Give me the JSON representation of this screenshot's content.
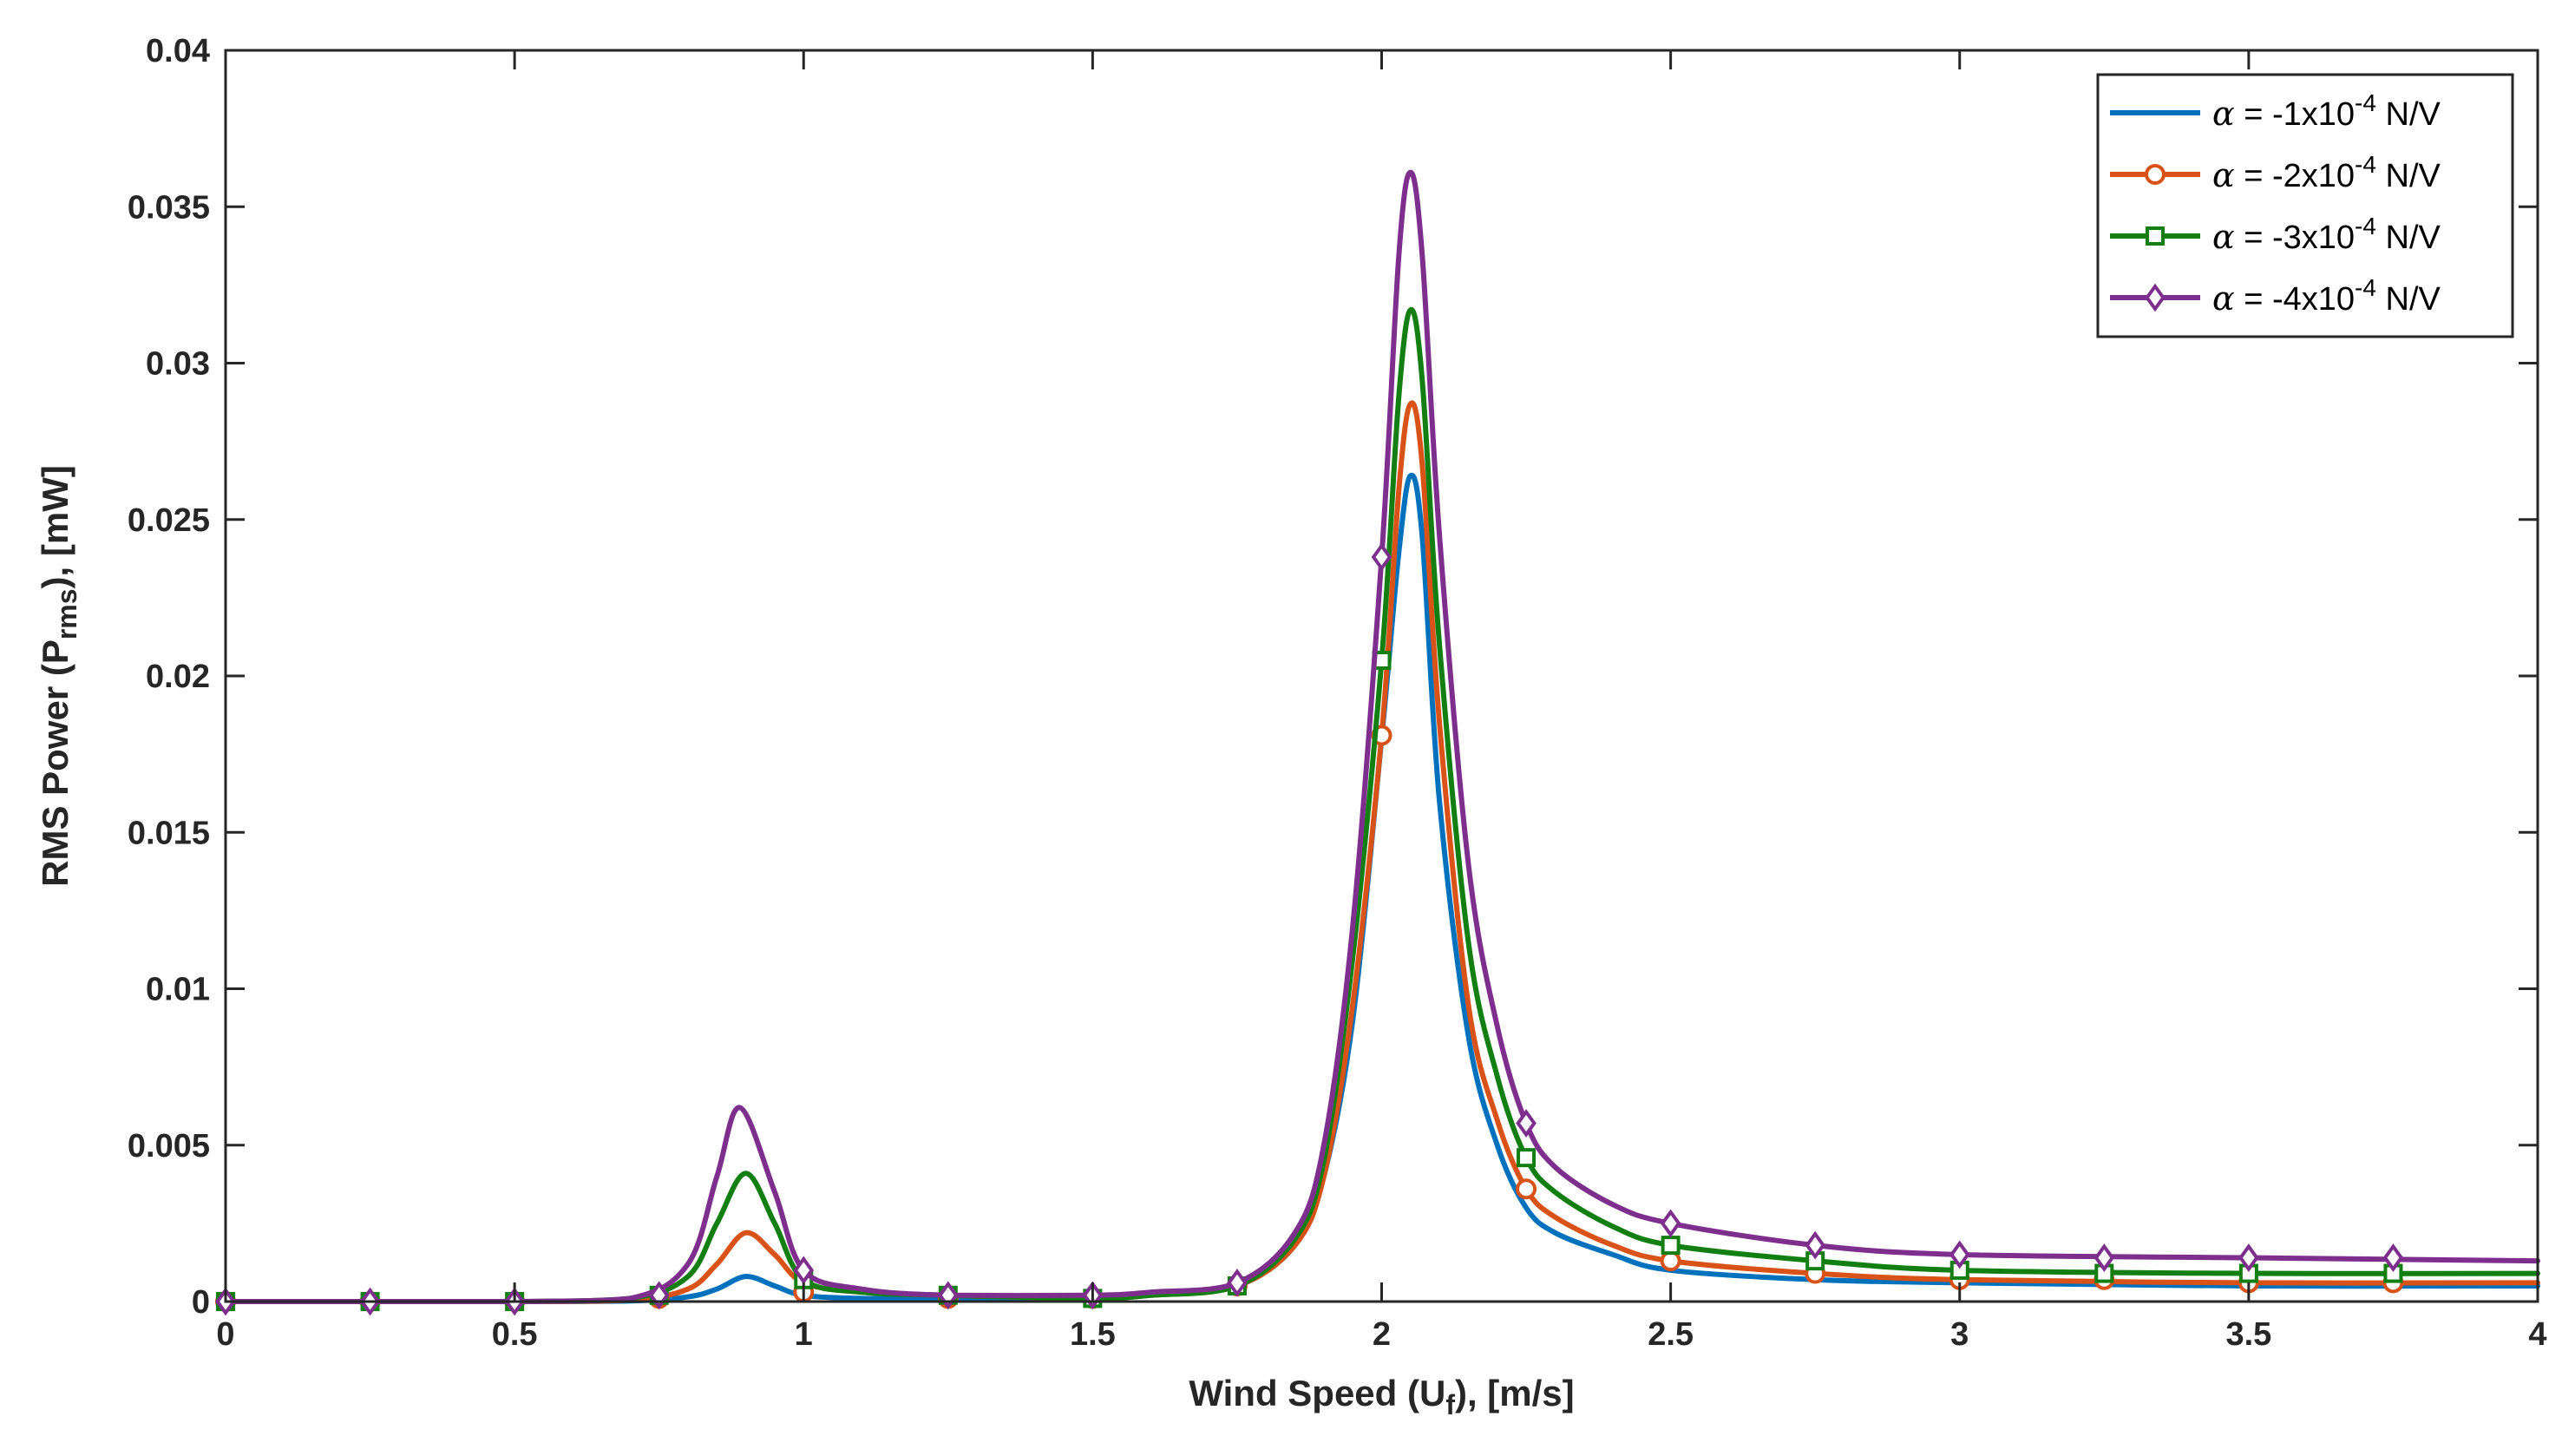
{
  "chart_data": {
    "type": "line",
    "title": "",
    "xlabel": {
      "prefix": "Wind Speed (U",
      "sub": "f",
      "suffix": "), [m/s]"
    },
    "ylabel": {
      "prefix": "RMS Power (P",
      "sub": "rms",
      "suffix": "), [mW]"
    },
    "xlim": [
      0,
      4
    ],
    "ylim": [
      0,
      0.04
    ],
    "xticks": [
      "0",
      "0.5",
      "1",
      "1.5",
      "2",
      "2.5",
      "3",
      "3.5",
      "4"
    ],
    "yticks": [
      "0",
      "0.005",
      "0.01",
      "0.015",
      "0.02",
      "0.025",
      "0.03",
      "0.035",
      "0.04"
    ],
    "grid": false,
    "legend_position": "top-right",
    "series": [
      {
        "name": "α = -1x10-4 N/V",
        "label_parts": {
          "symbol": "α",
          "pre": " = -1x10",
          "sup": "-4",
          "post": " N/V"
        },
        "color": "#0072BD",
        "marker": "none",
        "x": [
          0,
          0.25,
          0.5,
          0.7,
          0.8,
          0.85,
          0.9,
          0.95,
          1.0,
          1.1,
          1.25,
          1.5,
          1.6,
          1.75,
          1.85,
          1.9,
          1.95,
          2.0,
          2.03,
          2.05,
          2.07,
          2.1,
          2.15,
          2.2,
          2.25,
          2.3,
          2.4,
          2.5,
          2.75,
          3.0,
          3.5,
          4.0
        ],
        "y": [
          0,
          0,
          0,
          2e-05,
          0.00015,
          0.0004,
          0.0008,
          0.0005,
          0.0002,
          0.0001,
          0.0001,
          0.0001,
          0.0002,
          0.0005,
          0.0018,
          0.004,
          0.009,
          0.018,
          0.024,
          0.0264,
          0.0245,
          0.016,
          0.0085,
          0.005,
          0.003,
          0.0022,
          0.0015,
          0.001,
          0.0007,
          0.0006,
          0.0005,
          0.0005
        ],
        "marker_x": [],
        "marker_y": []
      },
      {
        "name": "α = -2x10-4 N/V",
        "label_parts": {
          "symbol": "α",
          "pre": " = -2x10",
          "sup": "-4",
          "post": " N/V"
        },
        "color": "#D95319",
        "marker": "circle",
        "x": [
          0,
          0.25,
          0.5,
          0.7,
          0.8,
          0.85,
          0.9,
          0.95,
          1.0,
          1.1,
          1.25,
          1.5,
          1.6,
          1.75,
          1.85,
          1.9,
          1.95,
          2.0,
          2.03,
          2.05,
          2.07,
          2.1,
          2.15,
          2.2,
          2.25,
          2.3,
          2.4,
          2.5,
          2.75,
          3.0,
          3.5,
          4.0
        ],
        "y": [
          0,
          0,
          0,
          5e-05,
          0.0004,
          0.0012,
          0.0022,
          0.0015,
          0.0006,
          0.0003,
          0.0002,
          0.0001,
          0.0002,
          0.0005,
          0.0018,
          0.004,
          0.0095,
          0.0181,
          0.026,
          0.0287,
          0.0268,
          0.0185,
          0.0095,
          0.0058,
          0.0036,
          0.0027,
          0.0018,
          0.0013,
          0.0009,
          0.0007,
          0.0006,
          0.0006
        ],
        "marker_x": [
          0,
          0.25,
          0.5,
          0.75,
          1.0,
          1.25,
          1.5,
          1.75,
          2.0,
          2.25,
          2.5,
          2.75,
          3.0,
          3.25,
          3.5,
          3.75
        ],
        "marker_y": [
          0,
          0,
          0,
          0.0001,
          0.0003,
          0.0001,
          0.0001,
          0.0005,
          0.0181,
          0.0036,
          0.0013,
          0.0009,
          0.0007,
          0.0007,
          0.0006,
          0.0006
        ]
      },
      {
        "name": "α = -3x10-4 N/V",
        "label_parts": {
          "symbol": "α",
          "pre": " = -3x10",
          "sup": "-4",
          "post": " N/V"
        },
        "color": "#137F13",
        "marker": "square",
        "x": [
          0,
          0.25,
          0.5,
          0.7,
          0.8,
          0.85,
          0.9,
          0.95,
          1.0,
          1.1,
          1.25,
          1.5,
          1.6,
          1.75,
          1.85,
          1.9,
          1.95,
          2.0,
          2.03,
          2.05,
          2.07,
          2.1,
          2.15,
          2.2,
          2.25,
          2.3,
          2.4,
          2.5,
          2.75,
          3.0,
          3.5,
          4.0
        ],
        "y": [
          0,
          0,
          0,
          0.0001,
          0.0008,
          0.0025,
          0.0041,
          0.0025,
          0.0007,
          0.0003,
          0.0002,
          0.0001,
          0.0002,
          0.0005,
          0.002,
          0.0045,
          0.011,
          0.0205,
          0.029,
          0.0317,
          0.0295,
          0.021,
          0.0115,
          0.0072,
          0.0046,
          0.0035,
          0.0024,
          0.0018,
          0.0013,
          0.001,
          0.0009,
          0.0009
        ],
        "marker_x": [
          0,
          0.25,
          0.5,
          0.75,
          1.0,
          1.25,
          1.5,
          1.75,
          2.0,
          2.25,
          2.5,
          2.75,
          3.0,
          3.25,
          3.5,
          3.75
        ],
        "marker_y": [
          0,
          0,
          0,
          0.0002,
          0.0007,
          0.0002,
          0.0001,
          0.0005,
          0.0205,
          0.0046,
          0.0018,
          0.0013,
          0.001,
          0.0009,
          0.0009,
          0.0009
        ]
      },
      {
        "name": "α = -4x10-4 N/V",
        "label_parts": {
          "symbol": "α",
          "pre": " = -4x10",
          "sup": "-4",
          "post": " N/V"
        },
        "color": "#7E2F8E",
        "marker": "diamond",
        "x": [
          0,
          0.25,
          0.5,
          0.7,
          0.8,
          0.85,
          0.89,
          0.95,
          1.0,
          1.1,
          1.25,
          1.5,
          1.6,
          1.75,
          1.85,
          1.9,
          1.95,
          2.0,
          2.03,
          2.05,
          2.07,
          2.1,
          2.15,
          2.2,
          2.25,
          2.3,
          2.4,
          2.5,
          2.75,
          3.0,
          3.5,
          4.0
        ],
        "y": [
          0,
          0,
          0,
          0.0001,
          0.0012,
          0.004,
          0.0062,
          0.0035,
          0.001,
          0.0004,
          0.0002,
          0.0002,
          0.0003,
          0.0006,
          0.0022,
          0.005,
          0.012,
          0.0238,
          0.0335,
          0.0361,
          0.0335,
          0.0245,
          0.014,
          0.0088,
          0.0057,
          0.0043,
          0.0031,
          0.0025,
          0.0018,
          0.0015,
          0.0014,
          0.0013
        ],
        "marker_x": [
          0,
          0.25,
          0.5,
          0.75,
          1.0,
          1.25,
          1.5,
          1.75,
          2.0,
          2.25,
          2.5,
          2.75,
          3.0,
          3.25,
          3.5,
          3.75
        ],
        "marker_y": [
          0,
          0,
          0,
          0.0002,
          0.001,
          0.0002,
          0.0002,
          0.0006,
          0.0238,
          0.0057,
          0.0025,
          0.0018,
          0.0015,
          0.0014,
          0.0014,
          0.0014
        ]
      }
    ]
  }
}
